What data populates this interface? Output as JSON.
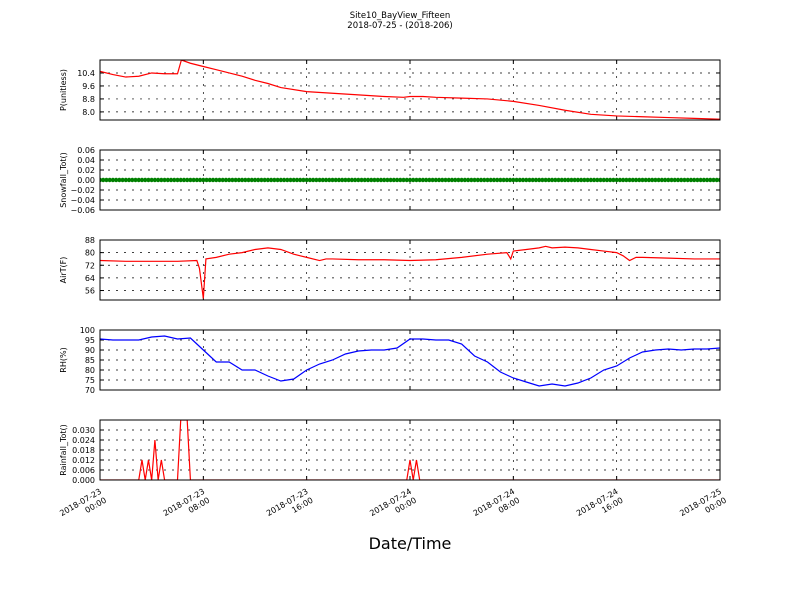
{
  "figure": {
    "title_line1": "Site10_BayView_Fifteen",
    "title_line2": "2018-07-25 - (2018-206)",
    "xlabel": "Date/Time",
    "xticks": [
      "2018-07-23\n00:00",
      "2018-07-23\n08:00",
      "2018-07-23\n16:00",
      "2018-07-24\n00:00",
      "2018-07-24\n08:00",
      "2018-07-24\n16:00",
      "2018-07-25\n00:00"
    ]
  },
  "chart_data": [
    {
      "type": "line",
      "ylabel": "P(unitless)",
      "ylim": [
        7.5,
        11.2
      ],
      "yticks": [
        "10.4",
        "9.6",
        "8.8",
        "8.0"
      ],
      "ytick_values": [
        10.4,
        9.6,
        8.8,
        8.0
      ],
      "grid": true,
      "color": "#ff0000",
      "x": [
        0,
        1,
        2,
        3,
        4,
        5,
        6,
        6.3,
        7,
        8,
        9,
        10,
        11,
        12,
        13,
        14,
        16,
        18,
        20,
        22,
        23.5,
        24,
        25,
        26,
        28,
        30,
        32,
        34,
        36,
        38,
        40,
        42,
        44,
        46,
        48
      ],
      "y": [
        10.5,
        10.3,
        10.15,
        10.2,
        10.4,
        10.35,
        10.35,
        11.2,
        11.0,
        10.8,
        10.6,
        10.4,
        10.2,
        9.95,
        9.75,
        9.5,
        9.25,
        9.15,
        9.05,
        8.95,
        8.9,
        8.95,
        8.95,
        8.9,
        8.85,
        8.8,
        8.65,
        8.4,
        8.1,
        7.85,
        7.75,
        7.7,
        7.65,
        7.6,
        7.55
      ]
    },
    {
      "type": "line",
      "ylabel": "Snowfall_Tot()",
      "ylim": [
        -0.06,
        0.06
      ],
      "yticks": [
        "0.06",
        "0.04",
        "0.02",
        "0.00",
        "−0.02",
        "−0.04",
        "−0.06"
      ],
      "ytick_values": [
        0.06,
        0.04,
        0.02,
        0.0,
        -0.02,
        -0.04,
        -0.06
      ],
      "grid": true,
      "color": "#008000",
      "marker": "dot",
      "x": [
        0,
        48
      ],
      "y": [
        0,
        0
      ]
    },
    {
      "type": "line",
      "ylabel": "AirT(F)",
      "ylim": [
        50,
        88
      ],
      "yticks": [
        "88",
        "80",
        "72",
        "64",
        "56"
      ],
      "ytick_values": [
        88,
        80,
        72,
        64,
        56
      ],
      "grid": true,
      "color": "#ff0000",
      "x": [
        0,
        2,
        4,
        6,
        7.5,
        7.7,
        8,
        8.2,
        9,
        10,
        11,
        12,
        13,
        14,
        15,
        15.5,
        16,
        17,
        17.5,
        18,
        20,
        22,
        24,
        26,
        28,
        30,
        31.5,
        31.8,
        32,
        33,
        34,
        34.5,
        35,
        36,
        37,
        38,
        39,
        40,
        40.5,
        41,
        41.5,
        42,
        44,
        46,
        48
      ],
      "y": [
        75,
        74.5,
        74.5,
        74.5,
        75,
        70,
        51,
        76,
        77,
        79,
        80,
        82,
        83,
        82,
        79,
        78,
        77,
        75,
        76,
        76,
        75.5,
        75.5,
        75,
        75.5,
        77,
        79,
        80,
        76,
        81,
        82,
        83,
        84,
        83,
        83.5,
        83,
        82,
        81,
        80,
        78,
        75,
        77,
        77,
        76.5,
        76,
        76
      ]
    },
    {
      "type": "line",
      "ylabel": "RH(%)",
      "ylim": [
        70,
        100
      ],
      "yticks": [
        "100",
        "95",
        "90",
        "85",
        "80",
        "75",
        "70"
      ],
      "ytick_values": [
        100,
        95,
        90,
        85,
        80,
        75,
        70
      ],
      "grid": true,
      "color": "#0000ff",
      "x": [
        0,
        1,
        2,
        3,
        4,
        5,
        6,
        7,
        8,
        9,
        10,
        11,
        12,
        13,
        14,
        15,
        16,
        17,
        18,
        19,
        20,
        21,
        22,
        23,
        24,
        25,
        26,
        27,
        28,
        29,
        30,
        31,
        32,
        33,
        34,
        35,
        36,
        37,
        38,
        39,
        40,
        41,
        42,
        43,
        44,
        45,
        46,
        47,
        48
      ],
      "y": [
        95.5,
        95,
        95,
        95,
        96.5,
        97,
        95.5,
        96,
        90,
        84,
        84,
        80,
        80,
        77,
        74.5,
        75.5,
        80,
        83,
        85,
        88,
        89.5,
        90,
        90,
        91,
        95.5,
        95.5,
        95,
        95,
        93,
        87,
        84,
        79,
        76,
        74,
        72,
        73,
        72,
        73.5,
        76,
        80,
        82,
        86,
        89,
        90,
        90.5,
        90,
        90.5,
        90.5,
        91
      ]
    },
    {
      "type": "line",
      "ylabel": "Rainfall_Tot()",
      "ylim": [
        0,
        0.036
      ],
      "yticks": [
        "0.030",
        "0.024",
        "0.018",
        "0.012",
        "0.006",
        "0.000"
      ],
      "ytick_values": [
        0.03,
        0.024,
        0.018,
        0.012,
        0.006,
        0.0
      ],
      "grid": true,
      "color": "#ff0000",
      "x": [
        0,
        3,
        3.25,
        3.5,
        3.75,
        4,
        4.25,
        4.5,
        4.75,
        5,
        6,
        6.25,
        6.5,
        6.75,
        7,
        23.75,
        24,
        24.25,
        24.5,
        24.75,
        48
      ],
      "y": [
        0,
        0,
        0.012,
        0,
        0.012,
        0,
        0.024,
        0,
        0.012,
        0,
        0,
        0.036,
        0.036,
        0.036,
        0,
        0,
        0.012,
        0,
        0.012,
        0,
        0
      ]
    }
  ]
}
